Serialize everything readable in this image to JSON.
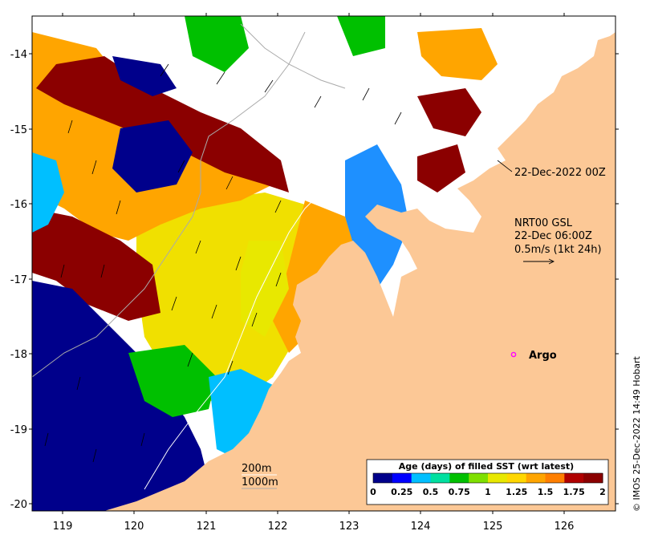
{
  "map": {
    "x_ticks": [
      "119",
      "120",
      "121",
      "122",
      "123",
      "124",
      "125",
      "126"
    ],
    "y_ticks": [
      "-14",
      "-15",
      "-16",
      "-17",
      "-18",
      "-19",
      "-20"
    ],
    "lon_range": [
      118.6,
      126.8
    ],
    "lat_range": [
      -20.1,
      -13.5
    ]
  },
  "annotations": {
    "time_label": "22-Dec-2022 00Z",
    "current_title": "NRT00 GSL",
    "current_time": "22-Dec 06:00Z",
    "current_scale": "0.5m/s (1kt 24h)",
    "argo_label": "Argo",
    "depth_200": "200m",
    "depth_1000": "1000m"
  },
  "colorbar": {
    "title": "Age (days) of filled SST (wrt latest)",
    "ticks": [
      "0",
      "0.25",
      "0.5",
      "0.75",
      "1",
      "1.25",
      "1.5",
      "1.75",
      "2"
    ],
    "colors": [
      "#00008b",
      "#0000ff",
      "#00bfff",
      "#00e0a0",
      "#00c000",
      "#7fe000",
      "#e8e800",
      "#ffd700",
      "#ffa500",
      "#ff7f00",
      "#b00000",
      "#8b0000"
    ]
  },
  "credit": "© IMOS 25-Dec-2022 14:49 Hobart",
  "colors": {
    "land": "#fcc896",
    "cloud": "#ffffff",
    "argo": "#ff00ff"
  }
}
